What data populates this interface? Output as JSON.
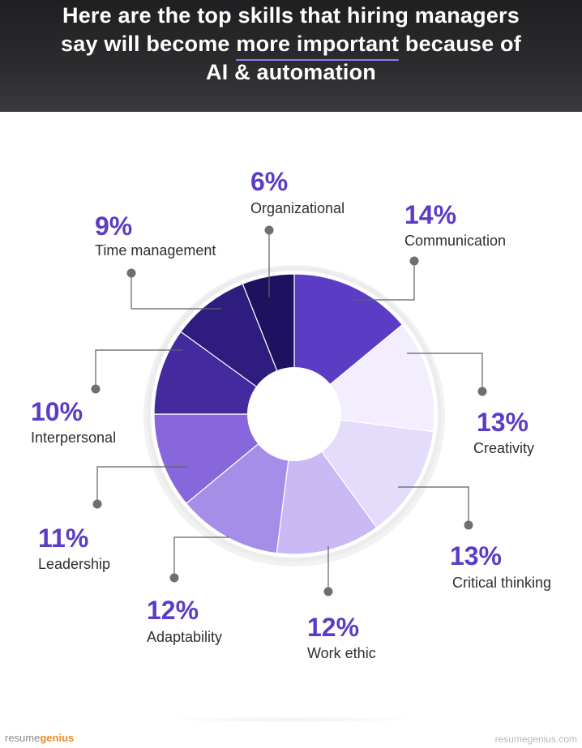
{
  "header": {
    "title_line1": "Here are the top skills that hiring managers",
    "title_line2_pre": "say will become ",
    "title_line2_highlight": "more important",
    "title_line2_post": " because of",
    "title_line3": "AI & automation"
  },
  "chart_data": {
    "type": "pie",
    "title": "Here are the top skills that hiring managers say will become more important because of AI & automation",
    "slices": [
      {
        "label": "Communication",
        "value": 14,
        "value_label": "14%",
        "color": "#5b3cc4"
      },
      {
        "label": "Creativity",
        "value": 13,
        "value_label": "13%",
        "color": "#f2eefd"
      },
      {
        "label": "Critical thinking",
        "value": 13,
        "value_label": "13%",
        "color": "#e4dcfb"
      },
      {
        "label": "Work ethic",
        "value": 12,
        "value_label": "12%",
        "color": "#c9b9f5"
      },
      {
        "label": "Adaptability",
        "value": 12,
        "value_label": "12%",
        "color": "#a58ee8"
      },
      {
        "label": "Leadership",
        "value": 11,
        "value_label": "11%",
        "color": "#8867dc"
      },
      {
        "label": "Interpersonal",
        "value": 10,
        "value_label": "10%",
        "color": "#432a9e"
      },
      {
        "label": "Time management",
        "value": 9,
        "value_label": "9%",
        "color": "#2f1c7f"
      },
      {
        "label": "Organizational",
        "value": 6,
        "value_label": "6%",
        "color": "#1e1160"
      }
    ]
  },
  "footer": {
    "logo_part1": "resume",
    "logo_part2": "genius",
    "url": "resumegenius.com"
  }
}
